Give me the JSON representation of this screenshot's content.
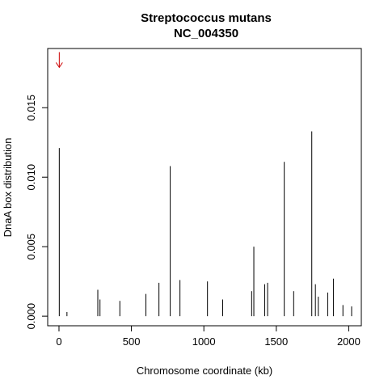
{
  "chart_data": {
    "type": "line",
    "title": "Streptococcus mutans",
    "subtitle": "NC_004350",
    "xlabel": "Chromosome coordinate (kb)",
    "ylabel": "DnaA box distribution",
    "xlim": [
      -78,
      2087
    ],
    "ylim": [
      -0.00069,
      0.01926
    ],
    "xticks": [
      0,
      500,
      1000,
      1500,
      2000
    ],
    "yticks": [
      0.0,
      0.005,
      0.01,
      0.015
    ],
    "ytick_labels": [
      "0.000",
      "0.005",
      "0.010",
      "0.015"
    ],
    "grid": false,
    "line_color": "#000000",
    "marker_color": "#cc0000",
    "series": [
      {
        "peaks": [
          {
            "x": 2,
            "y": 0.0121
          },
          {
            "x": 55,
            "y": 0.0003
          },
          {
            "x": 268,
            "y": 0.0019
          },
          {
            "x": 283,
            "y": 0.0012
          },
          {
            "x": 420,
            "y": 0.0011
          },
          {
            "x": 600,
            "y": 0.0016
          },
          {
            "x": 690,
            "y": 0.0024
          },
          {
            "x": 768,
            "y": 0.0108
          },
          {
            "x": 835,
            "y": 0.0026
          },
          {
            "x": 1025,
            "y": 0.0025
          },
          {
            "x": 1130,
            "y": 0.0012
          },
          {
            "x": 1330,
            "y": 0.0018
          },
          {
            "x": 1345,
            "y": 0.005
          },
          {
            "x": 1420,
            "y": 0.0023
          },
          {
            "x": 1440,
            "y": 0.0024
          },
          {
            "x": 1555,
            "y": 0.0111
          },
          {
            "x": 1620,
            "y": 0.0018
          },
          {
            "x": 1745,
            "y": 0.0133
          },
          {
            "x": 1770,
            "y": 0.0023
          },
          {
            "x": 1790,
            "y": 0.0014
          },
          {
            "x": 1855,
            "y": 0.0017
          },
          {
            "x": 1895,
            "y": 0.0027
          },
          {
            "x": 1960,
            "y": 0.0008
          },
          {
            "x": 2020,
            "y": 0.0007
          }
        ]
      }
    ],
    "origin_marker": {
      "x": 2,
      "y": 0.0182,
      "symbol": "arrow-down"
    }
  }
}
